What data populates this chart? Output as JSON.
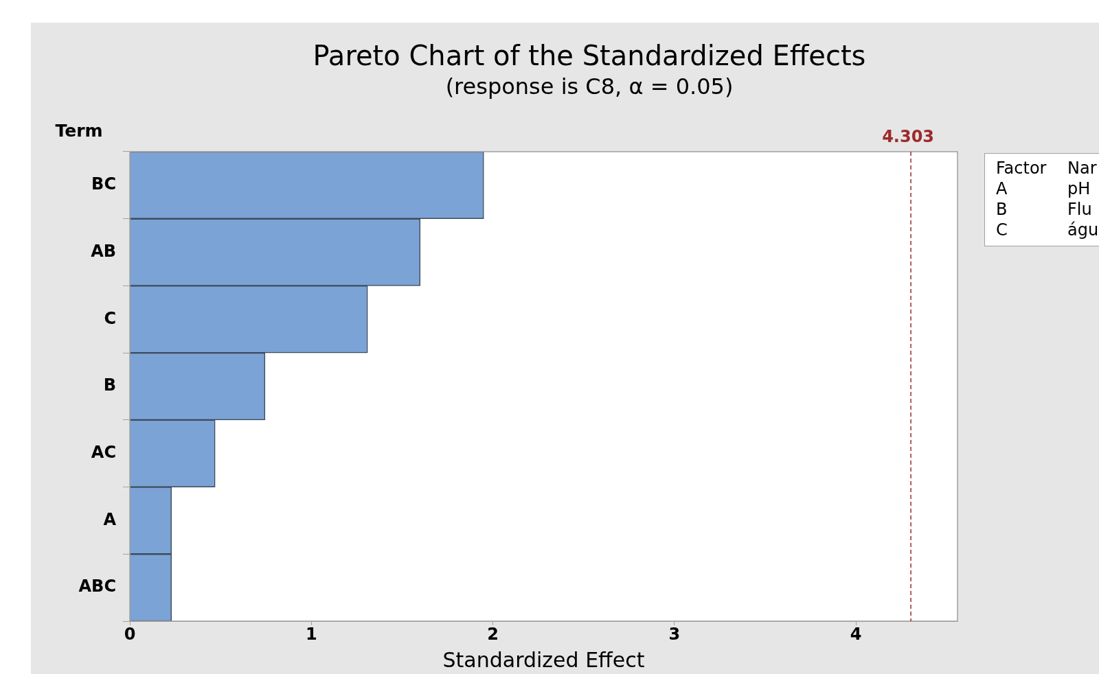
{
  "chart_data": {
    "type": "bar",
    "orientation": "horizontal",
    "title": "Pareto Chart of the Standardized Effects",
    "subtitle": "(response is C8, α = 0.05)",
    "xlabel": "Standardized Effect",
    "ylabel": "Term",
    "categories": [
      "BC",
      "AB",
      "C",
      "B",
      "AC",
      "A",
      "ABC"
    ],
    "series": [
      {
        "color": "#7ba3d6",
        "values": [
          1.95,
          1.6,
          1.31,
          0.745,
          0.47,
          0.23,
          0.23
        ]
      }
    ],
    "xlim": [
      0,
      4.56
    ],
    "xticks": [
      0,
      1,
      2,
      3,
      4
    ],
    "ref_lines": [
      {
        "axis": "x",
        "value": 4.303,
        "label": "4.303",
        "color": "#9e2a2b",
        "line_style": "dashed"
      }
    ],
    "annotations": [
      "Factor",
      "Nar",
      "A",
      "pH",
      "B",
      "Flu",
      "C",
      "águ"
    ]
  }
}
